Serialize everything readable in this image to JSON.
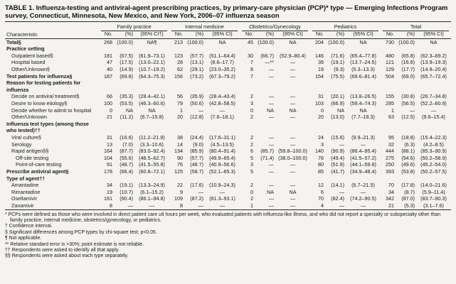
{
  "page": {
    "title": "TABLE 1. Influenza-testing and antiviral-agent prescribing practices, by primary-care physician (PCP)* type — Emerging Infections Program survey, Connecticut, Minnesota, New Mexico, and New York, 2006–07 influenza season"
  },
  "table": {
    "characteristic_header": "Characteristic",
    "groups": [
      {
        "label": "Family practice",
        "sub": [
          "No.",
          "(%)",
          "(95% CI†)"
        ]
      },
      {
        "label": "Internal medicine",
        "sub": [
          "No.",
          "(%)",
          "(95% CI)"
        ]
      },
      {
        "label": "Obstetrics/Gynecology",
        "sub": [
          "No.",
          "(%)",
          "(95% CI)"
        ]
      },
      {
        "label": "Pediatrics",
        "sub": [
          "No.",
          "(%)",
          "(95% CI)"
        ]
      },
      {
        "label": "Total",
        "sub": [
          "No.",
          "(%)",
          "(95% CI)"
        ]
      }
    ],
    "rows": [
      {
        "type": "data",
        "label": "Total§",
        "indent": 0,
        "bold": true,
        "cells": [
          "268",
          "(100.0)",
          "NA¶",
          "213",
          "(100.0)",
          "NA",
          "45",
          "(100.0)",
          "NA",
          "204",
          "(100.0)",
          "NA",
          "730",
          "(100.0)",
          "NA"
        ]
      },
      {
        "type": "section",
        "label": "Practice setting"
      },
      {
        "type": "data",
        "label": "Outpatient based§",
        "indent": 1,
        "cells": [
          "181",
          "(67.5)",
          "(61.9–73.1)",
          "123",
          "(57.7)",
          "(51.1–64.4)",
          "30",
          "(66.7)",
          "(52.9–80.4)",
          "146",
          "(71.6)",
          "(65.4–77.8)",
          "480",
          "(65.8)",
          "(62.3–69.2)"
        ]
      },
      {
        "type": "data",
        "label": "Hospital based",
        "indent": 1,
        "cells": [
          "47",
          "(17.5)",
          "(13.0–22.1)",
          "28",
          "(13.1)",
          "(8.6–17.7)",
          "7",
          "—**",
          "—",
          "39",
          "(19.1)",
          "(13.7–24.5)",
          "121",
          "(16.6)",
          "(13.9–19.3)"
        ]
      },
      {
        "type": "data",
        "label": "Other/Unknown§",
        "indent": 1,
        "cells": [
          "40",
          "(14.9)",
          "(10.7–19.2)",
          "62",
          "(29.1)",
          "(23.0–35.2)",
          "8",
          "—",
          "—",
          "19",
          "(9.3)",
          "(5.3–13.3)",
          "129",
          "(17.7)",
          "(14.9–20.4)"
        ]
      },
      {
        "type": "data",
        "label": "Test patients for influenza§",
        "indent": 0,
        "bold": true,
        "cells": [
          "187",
          "(69.8)",
          "(64.3–75.3)",
          "156",
          "(73.2)",
          "(67.3–79.2)",
          "7",
          "—",
          "—",
          "154",
          "(75.5)",
          "(69.6–81.4)",
          "504",
          "(69.0)",
          "(65.7–72.4)"
        ]
      },
      {
        "type": "section",
        "label": "Reason for testing patients for influenza"
      },
      {
        "type": "data",
        "label": "Decide on antiviral treatment§",
        "indent": 1,
        "cells": [
          "66",
          "(35.3)",
          "(28.4–42.1)",
          "56",
          "(35.9)",
          "(28.4–43.4)",
          "2",
          "—",
          "—",
          "31",
          "(20.1)",
          "(13.8–26.5)",
          "155",
          "(30.8)",
          "(26.7–34.8)"
        ]
      },
      {
        "type": "data",
        "label": "Desire to know etiology§",
        "indent": 1,
        "cells": [
          "100",
          "(53.5)",
          "(46.3–60.6)",
          "79",
          "(50.6)",
          "(42.8–58.5)",
          "3",
          "—",
          "—",
          "103",
          "(66.9)",
          "(59.4–74.3)",
          "285",
          "(56.5)",
          "(52.2–60.9)"
        ]
      },
      {
        "type": "data",
        "label": "Decide whether to admit to hospital",
        "indent": 1,
        "cells": [
          "0",
          "NA",
          "NA",
          "1",
          "—",
          "—",
          "0",
          "NA",
          "NA",
          "0",
          "NA",
          "NA",
          "1",
          "—",
          "—"
        ]
      },
      {
        "type": "data",
        "label": "Other/Unknown",
        "indent": 1,
        "cells": [
          "21",
          "(11.2)",
          "(6.7–15.8)",
          "20",
          "(12.8)",
          "(7.6–18.1)",
          "2",
          "—",
          "—",
          "20",
          "(13.0)",
          "(7.7–18.3)",
          "63",
          "(12.5)",
          "(9.6–15.4)"
        ]
      },
      {
        "type": "section",
        "label": "Influenza test types (among those who tested)††"
      },
      {
        "type": "data",
        "label": "Viral culture§",
        "indent": 1,
        "cells": [
          "31",
          "(16.6)",
          "(11.2–21.9)",
          "38",
          "(24.4)",
          "(17.6–31.1)",
          "2",
          "—",
          "—",
          "24",
          "(15.6)",
          "(9.9–21.3)",
          "95",
          "(18.8)",
          "(15.4–22.3)"
        ]
      },
      {
        "type": "data",
        "label": "Serology",
        "indent": 1,
        "cells": [
          "13",
          "(7.0)",
          "(3.3–10.6)",
          "14",
          "(9.0)",
          "(4.5–13.5)",
          "2",
          "—",
          "—",
          "3",
          "—",
          "—",
          "32",
          "(6.3)",
          "(4.2–8.5)"
        ]
      },
      {
        "type": "data",
        "label": "Rapid antigen§§",
        "indent": 1,
        "cells": [
          "164",
          "(87.7)",
          "(83.0–92.4)",
          "134",
          "(85.9)",
          "(80.4–91.4)",
          "6",
          "(85.7)",
          "(59.8–100.0)",
          "140",
          "(90.9)",
          "(86.4–95.4)",
          "444",
          "(88.1)",
          "(85.3–90.9)"
        ]
      },
      {
        "type": "data",
        "label": "Off-site testing",
        "indent": 2,
        "cells": [
          "104",
          "(55.6)",
          "(48.5–62.7)",
          "90",
          "(57.7)",
          "(49.9–65.4)",
          "5",
          "(71.4)",
          "(38.0–100.0)",
          "76",
          "(49.4)",
          "(41.5–57.2)",
          "275",
          "(54.6)",
          "(50.2–58.9)"
        ]
      },
      {
        "type": "data",
        "label": "Point-of-care testing",
        "indent": 2,
        "cells": [
          "91",
          "(48.7)",
          "(41.5–55.8)",
          "76",
          "(48.7)",
          "(40.9–56.6)",
          "3",
          "—",
          "—",
          "80",
          "(51.9)",
          "(44.1–59.8)",
          "250",
          "(49.6)",
          "(45.2–54.0)"
        ]
      },
      {
        "type": "data",
        "label": "Prescribe antiviral agent§",
        "indent": 0,
        "bold": true,
        "cells": [
          "178",
          "(66.4)",
          "(60.8–72.1)",
          "125",
          "(58.7)",
          "(52.1–65.3)",
          "5",
          "—",
          "—",
          "85",
          "(41.7)",
          "(34.9–48.4)",
          "393",
          "(53.8)",
          "(50.2–57.5)"
        ]
      },
      {
        "type": "section",
        "label": "Type of agent††"
      },
      {
        "type": "data",
        "label": "Amantadine",
        "indent": 1,
        "cells": [
          "34",
          "(19.1)",
          "(13.3–24.9)",
          "22",
          "(17.6)",
          "(10.9–24.3)",
          "2",
          "—",
          "—",
          "12",
          "(14.1)",
          "(6.7–21.5)",
          "70",
          "(17.8)",
          "(14.0–21.6)"
        ]
      },
      {
        "type": "data",
        "label": "Rimantadine",
        "indent": 1,
        "cells": [
          "19",
          "(10.7)",
          "(6.1–15.2)",
          "9",
          "—",
          "—",
          "0",
          "NA",
          "NA",
          "6",
          "—",
          "—",
          "34",
          "(8.7)",
          "(5.9–11.4)"
        ]
      },
      {
        "type": "data",
        "label": "Oseltamivir",
        "indent": 1,
        "cells": [
          "161",
          "(90.4)",
          "(86.1–94.8)",
          "109",
          "(87.2)",
          "(81.3–93.1)",
          "2",
          "—",
          "—",
          "70",
          "(82.4)",
          "(74.2–90.5)",
          "342",
          "(87.0)",
          "(83.7–90.3)"
        ]
      },
      {
        "type": "data",
        "label": "Zanamivir",
        "indent": 1,
        "cells": [
          "8",
          "—",
          "—",
          "8",
          "—",
          "—",
          "1",
          "—",
          "—",
          "4",
          "—",
          "—",
          "21",
          "(5.3)",
          "(3.1–7.6)"
        ]
      }
    ]
  },
  "footnotes": [
    "* PCPs were defined as those who were involved in direct patient care ≥8 hours per week, who evaluated patients with influenza-like illness, and who did not report a specialty or subspecialty other than family practice, internal medicine, obstetrics/gynecology, or pediatrics.",
    "† Confidence interval.",
    "§ Significant differences among PCP types by chi-square test; p<0.05.",
    "¶ Not applicable.",
    "** Relative standard error is >30%; point estimate is not reliable.",
    "†† Respondents were asked to identify all that apply.",
    "§§ Respondents were asked about each type separately."
  ]
}
